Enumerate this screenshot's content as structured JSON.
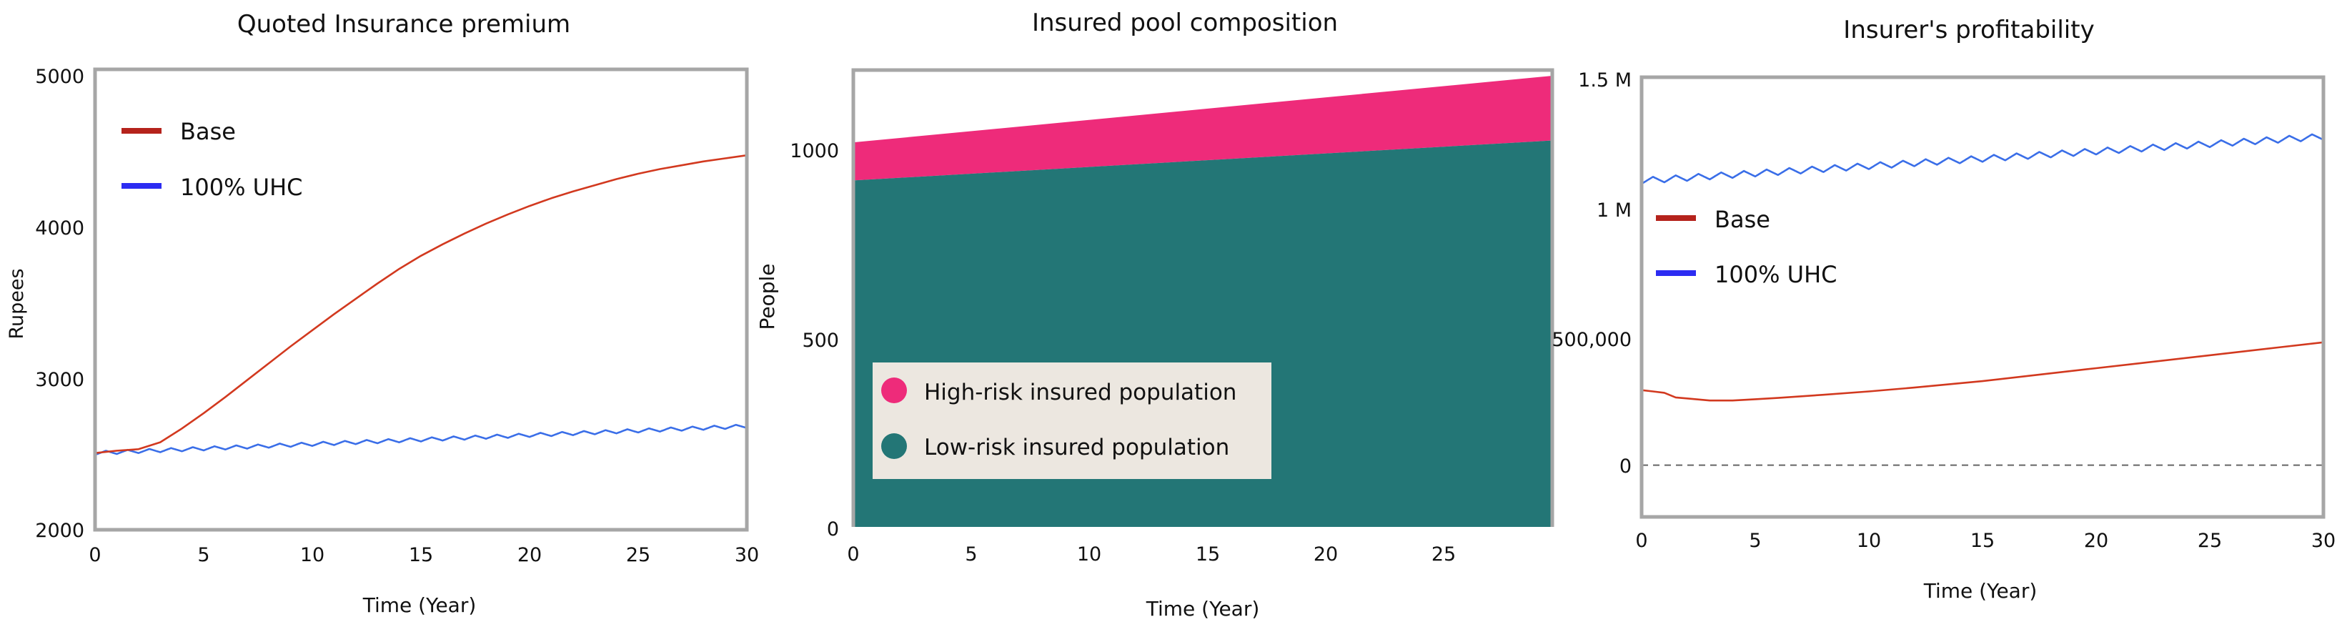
{
  "colors": {
    "base": "#b5231c",
    "uhc": "#2c2cf2",
    "uhc_line": "#3a6ee8",
    "base_line": "#d2391f",
    "high_risk": "#ee2b7a",
    "low_risk": "#237676",
    "frame": "#a6a6a6",
    "legend_box": "#ece7e0"
  },
  "chart_data": [
    {
      "type": "line",
      "title": "Quoted Insurance premium",
      "xlabel": "Time (Year)",
      "ylabel": "Rupees",
      "xlim": [
        0,
        30
      ],
      "ylim": [
        2000,
        5000
      ],
      "xticks": [
        0,
        5,
        10,
        15,
        20,
        25,
        30
      ],
      "xtick_labels": [
        "0",
        "5",
        "10",
        "15",
        "20",
        "25",
        "30"
      ],
      "yticks": [
        2000,
        3000,
        4000,
        5000
      ],
      "ytick_labels": [
        "2000",
        "3000",
        "4000",
        "5000"
      ],
      "legend": [
        "Base",
        "100% UHC"
      ],
      "legend_position": "top-left",
      "series": [
        {
          "name": "Base",
          "color_key": "base_line",
          "x": [
            0,
            1,
            2,
            3,
            4,
            5,
            6,
            7,
            8,
            9,
            10,
            11,
            12,
            13,
            14,
            15,
            16,
            17,
            18,
            19,
            20,
            21,
            22,
            23,
            24,
            25,
            26,
            27,
            28,
            29,
            30
          ],
          "y": [
            2500,
            2515,
            2525,
            2570,
            2660,
            2760,
            2865,
            2975,
            3085,
            3195,
            3300,
            3405,
            3505,
            3605,
            3700,
            3785,
            3860,
            3930,
            3995,
            4055,
            4110,
            4160,
            4205,
            4245,
            4285,
            4320,
            4350,
            4375,
            4400,
            4420,
            4440
          ]
        },
        {
          "name": "100% UHC",
          "color_key": "uhc_line",
          "x": [
            0,
            30
          ],
          "y": [
            2500,
            2675
          ],
          "wavy": true,
          "wave_amplitude": 12,
          "wave_period": 1.0
        }
      ]
    },
    {
      "type": "area",
      "stacked": true,
      "title": "Insured pool composition",
      "xlabel": "Time (Year)",
      "ylabel": "People",
      "xlim": [
        0,
        29.5
      ],
      "ylim": [
        0,
        1200
      ],
      "xticks": [
        0,
        5,
        10,
        15,
        20,
        25
      ],
      "xtick_labels": [
        "0",
        "5",
        "10",
        "15",
        "20",
        "25"
      ],
      "yticks": [
        0,
        500,
        1000
      ],
      "ytick_labels": [
        "0",
        "500",
        "1000"
      ],
      "legend": [
        "High-risk insured population",
        "Low-risk insured population"
      ],
      "legend_position": "bottom-left",
      "series": [
        {
          "name": "Low-risk insured population",
          "color_key": "low_risk",
          "x": [
            0,
            29.5
          ],
          "y": [
            910,
            1015
          ]
        },
        {
          "name": "High-risk insured population",
          "color_key": "high_risk",
          "x": [
            0,
            29.5
          ],
          "y": [
            100,
            170
          ]
        }
      ]
    },
    {
      "type": "line",
      "title": "Insurer's profitability",
      "xlabel": "Time (Year)",
      "ylabel": "",
      "xlim": [
        0,
        30
      ],
      "ylim": [
        -200000,
        1500000
      ],
      "xticks": [
        0,
        5,
        10,
        15,
        20,
        25,
        30
      ],
      "xtick_labels": [
        "0",
        "5",
        "10",
        "15",
        "20",
        "25",
        "30"
      ],
      "yticks": [
        0,
        500000,
        1000000,
        1500000
      ],
      "ytick_labels": [
        "0",
        "500,000",
        "1 M",
        "1.5 M"
      ],
      "reference_line": 0,
      "legend": [
        "Base",
        "100% UHC"
      ],
      "legend_position": "upper-left",
      "series": [
        {
          "name": "100% UHC",
          "color_key": "uhc_line",
          "x": [
            0,
            30
          ],
          "y": [
            1100000,
            1270000
          ],
          "wavy": true,
          "wave_amplitude": 12000,
          "wave_period": 1.0
        },
        {
          "name": "Base",
          "color_key": "base_line",
          "x": [
            0,
            0.5,
            1,
            1.5,
            2,
            3,
            4,
            5,
            6,
            8,
            10,
            12,
            15,
            18,
            20,
            22,
            25,
            28,
            30
          ],
          "y": [
            290000,
            285000,
            280000,
            262000,
            258000,
            250000,
            250000,
            255000,
            260000,
            272000,
            285000,
            300000,
            325000,
            355000,
            375000,
            395000,
            425000,
            455000,
            475000
          ]
        }
      ]
    }
  ]
}
